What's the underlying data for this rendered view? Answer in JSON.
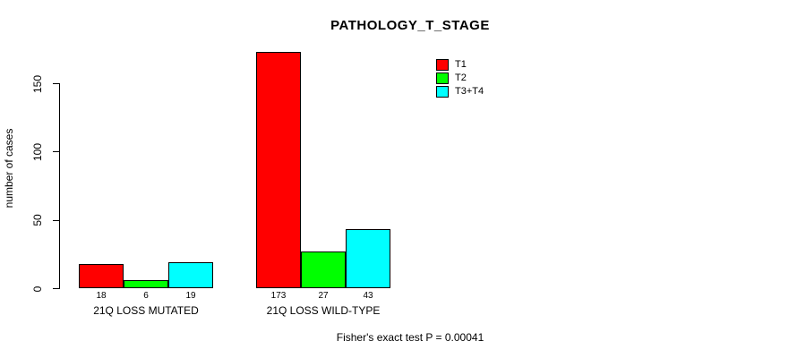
{
  "title": "PATHOLOGY_T_STAGE",
  "ylabel": "number of cases",
  "footer": "Fisher's exact test P = 0.00041",
  "chart_data": {
    "type": "bar",
    "grouped": true,
    "title": "PATHOLOGY_T_STAGE",
    "xlabel": "",
    "ylabel": "number of cases",
    "categories": [
      "21Q LOSS MUTATED",
      "21Q LOSS WILD-TYPE"
    ],
    "series": [
      {
        "name": "T1",
        "color": "#ff0000",
        "values": [
          18,
          173
        ]
      },
      {
        "name": "T2",
        "color": "#00ff00",
        "values": [
          6,
          27
        ]
      },
      {
        "name": "T3+T4",
        "color": "#00ffff",
        "values": [
          19,
          43
        ]
      }
    ],
    "bar_value_labels": [
      [
        18,
        6,
        19
      ],
      [
        173,
        27,
        43
      ]
    ],
    "yticks": [
      0,
      50,
      100,
      150
    ],
    "ylim": [
      0,
      173
    ],
    "grid": false,
    "legend_position": "top-right",
    "annotation": "Fisher's exact test P = 0.00041"
  }
}
